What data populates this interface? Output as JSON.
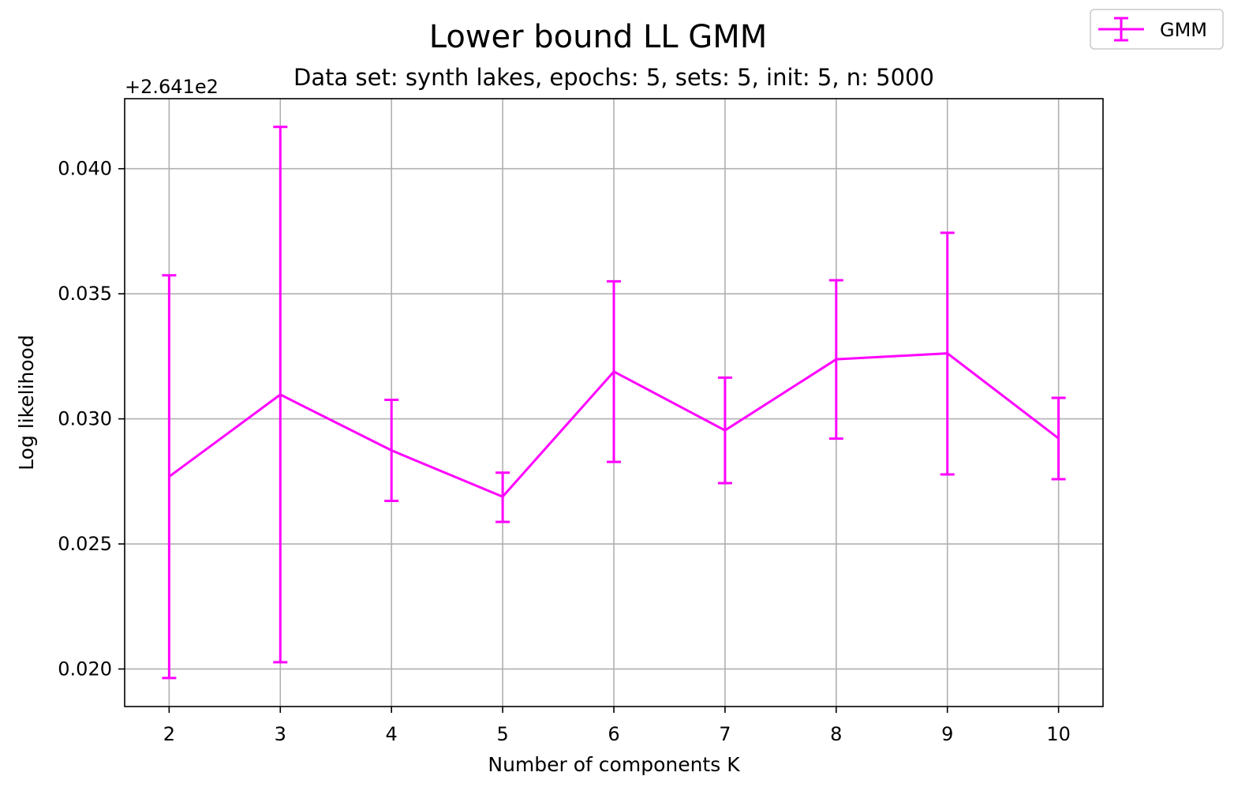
{
  "chart_data": {
    "type": "line",
    "title": "Lower bound LL GMM",
    "subtitle": "Data set:  synth lakes, epochs: 5, sets: 5, init: 5, n: 5000",
    "xlabel": "Number of components K",
    "ylabel": "Log likelihood",
    "y_offset_label": "+2.641e2",
    "y_offset": 264.1,
    "x": [
      2,
      3,
      4,
      5,
      6,
      7,
      8,
      9,
      10
    ],
    "xticks": [
      "2",
      "3",
      "4",
      "5",
      "6",
      "7",
      "8",
      "9",
      "10"
    ],
    "yticks": [
      0.02,
      0.025,
      0.03,
      0.035,
      0.04
    ],
    "ytick_labels": [
      "0.020",
      "0.025",
      "0.030",
      "0.035",
      "0.040"
    ],
    "xlim": [
      1.6,
      10.4
    ],
    "ylim": [
      0.0185,
      0.0428
    ],
    "grid": true,
    "legend": "outside top-right",
    "series": [
      {
        "name": "GMM",
        "color": "#ff00ff",
        "values": [
          0.02769,
          0.03097,
          0.02874,
          0.02689,
          0.03189,
          0.02954,
          0.03238,
          0.03262,
          0.02922
        ],
        "error_low": [
          0.01964,
          0.02027,
          0.02672,
          0.02588,
          0.02828,
          0.02743,
          0.02921,
          0.02778,
          0.02759
        ],
        "error_high": [
          0.03574,
          0.04167,
          0.03076,
          0.02785,
          0.0355,
          0.03165,
          0.03554,
          0.03744,
          0.03084
        ]
      }
    ]
  }
}
